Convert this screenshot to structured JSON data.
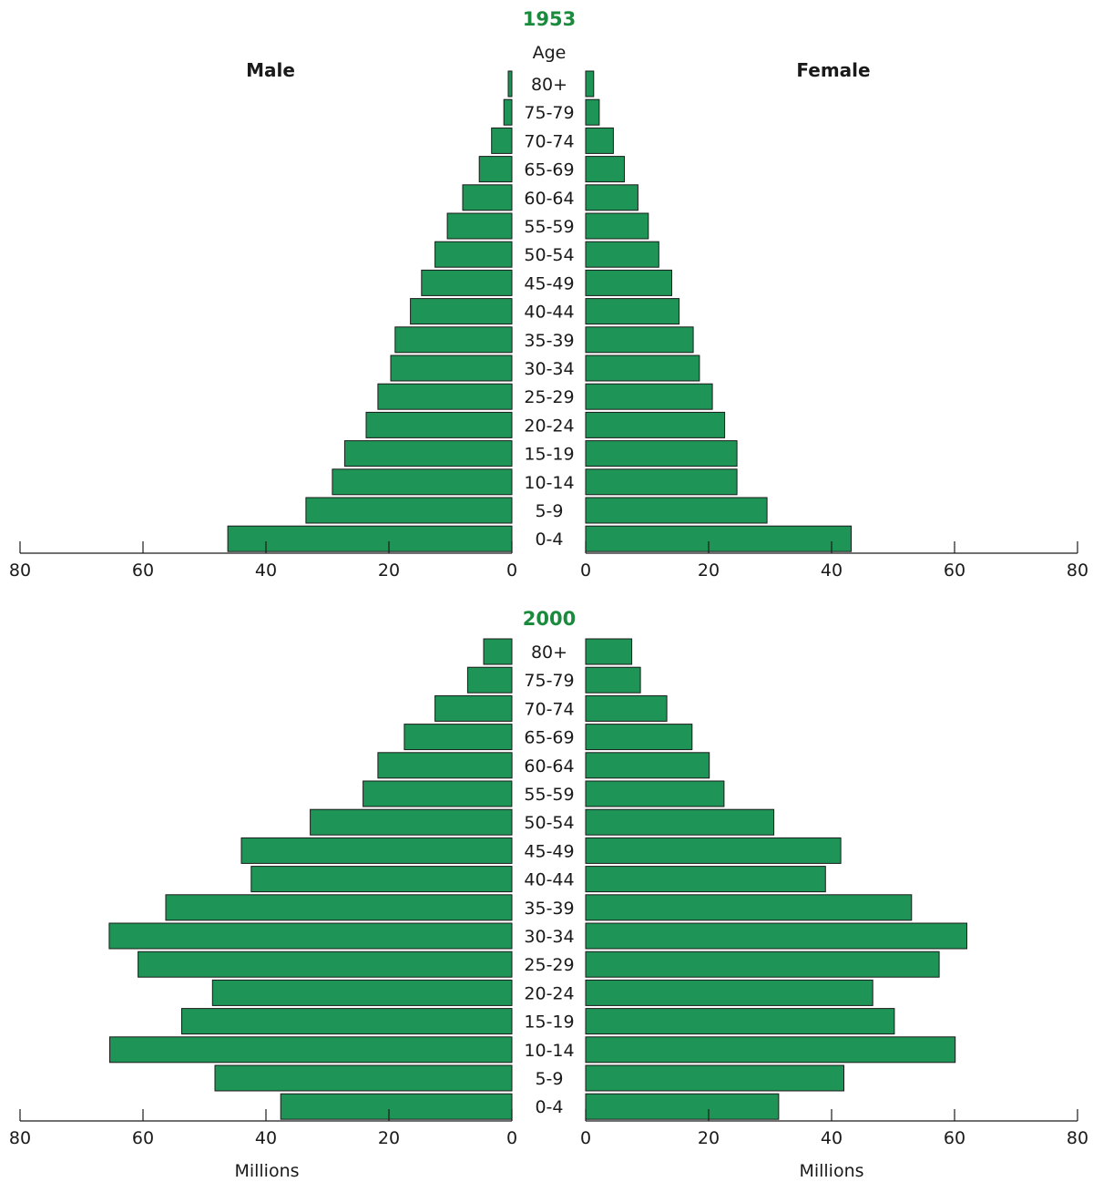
{
  "colors": {
    "bar": "#1e9556",
    "title": "#1a8a3c",
    "ink": "#1a1a1a"
  },
  "chart_data": [
    {
      "type": "bar",
      "orientation": "horizontal-population-pyramid",
      "title": "1953",
      "age_header": "Age",
      "male_label": "Male",
      "female_label": "Female",
      "xlabel": "",
      "xlim": [
        0,
        80
      ],
      "ticks": [
        "80",
        "60",
        "40",
        "20",
        "0"
      ],
      "female_ticks": [
        "0",
        "20",
        "40",
        "60",
        "80"
      ],
      "categories": [
        "80+",
        "75-79",
        "70-74",
        "65-69",
        "60-64",
        "55-59",
        "50-54",
        "45-49",
        "40-44",
        "35-39",
        "30-34",
        "25-29",
        "20-24",
        "15-19",
        "10-14",
        "5-9",
        "0-4"
      ],
      "series": [
        {
          "name": "Male",
          "values": [
            0.6,
            1.3,
            3.3,
            5.3,
            8.0,
            10.5,
            12.5,
            14.7,
            16.5,
            19.0,
            19.7,
            21.8,
            23.7,
            27.2,
            29.2,
            33.5,
            46.2
          ]
        },
        {
          "name": "Female",
          "values": [
            1.3,
            2.2,
            4.5,
            6.3,
            8.5,
            10.2,
            11.9,
            14.0,
            15.2,
            17.5,
            18.5,
            20.6,
            22.6,
            24.6,
            24.6,
            29.5,
            43.2
          ]
        }
      ]
    },
    {
      "type": "bar",
      "orientation": "horizontal-population-pyramid",
      "title": "2000",
      "age_header": "",
      "male_label": "",
      "female_label": "",
      "xlabel": "Millions",
      "xlim": [
        0,
        80
      ],
      "ticks": [
        "80",
        "60",
        "40",
        "20",
        "0"
      ],
      "female_ticks": [
        "0",
        "20",
        "40",
        "60",
        "80"
      ],
      "categories": [
        "80+",
        "75-79",
        "70-74",
        "65-69",
        "60-64",
        "55-59",
        "50-54",
        "45-49",
        "40-44",
        "35-39",
        "30-34",
        "25-29",
        "20-24",
        "15-19",
        "10-14",
        "5-9",
        "0-4"
      ],
      "series": [
        {
          "name": "Male",
          "values": [
            4.6,
            7.2,
            12.5,
            17.5,
            21.8,
            24.2,
            32.8,
            44.0,
            42.4,
            56.3,
            65.5,
            60.8,
            48.7,
            53.7,
            65.4,
            48.3,
            37.6
          ]
        },
        {
          "name": "Female",
          "values": [
            7.5,
            8.9,
            13.2,
            17.3,
            20.1,
            22.5,
            30.6,
            41.5,
            39.0,
            53.0,
            62.0,
            57.5,
            46.7,
            50.2,
            60.1,
            42.0,
            31.4
          ]
        }
      ]
    }
  ]
}
